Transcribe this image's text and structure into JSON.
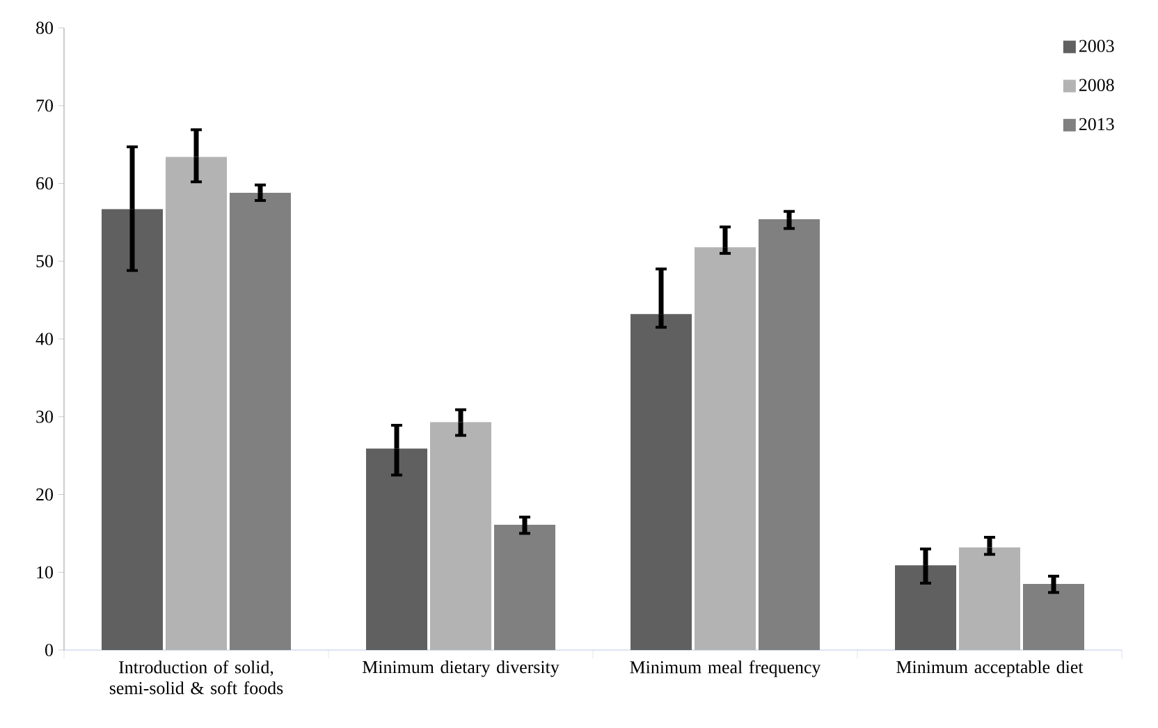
{
  "chart_data": {
    "type": "bar",
    "categories": [
      "Introduction of solid, semi-solid & soft foods",
      "Minimum dietary diversity",
      "Minimum meal frequency",
      "Minimum acceptable diet"
    ],
    "series": [
      {
        "name": "2003",
        "color": "#606060",
        "values": [
          56.7,
          25.9,
          43.2,
          10.9
        ],
        "errors": [
          [
            48.8,
            64.7
          ],
          [
            22.5,
            28.9
          ],
          [
            41.5,
            49.0
          ],
          [
            8.6,
            13.0
          ]
        ]
      },
      {
        "name": "2008",
        "color": "#b3b3b3",
        "values": [
          63.4,
          29.3,
          51.8,
          13.2
        ],
        "errors": [
          [
            60.2,
            66.9
          ],
          [
            27.6,
            30.9
          ],
          [
            51.0,
            54.4
          ],
          [
            12.3,
            14.5
          ]
        ]
      },
      {
        "name": "2013",
        "color": "#808080",
        "values": [
          58.8,
          16.1,
          55.4,
          8.5
        ],
        "errors": [
          [
            57.8,
            59.8
          ],
          [
            15.0,
            17.1
          ],
          [
            54.2,
            56.4
          ],
          [
            7.4,
            9.5
          ]
        ]
      }
    ],
    "ylim": [
      0,
      80
    ],
    "yticks": [
      0,
      10,
      20,
      30,
      40,
      50,
      60,
      70,
      80
    ],
    "legend": "top right"
  }
}
